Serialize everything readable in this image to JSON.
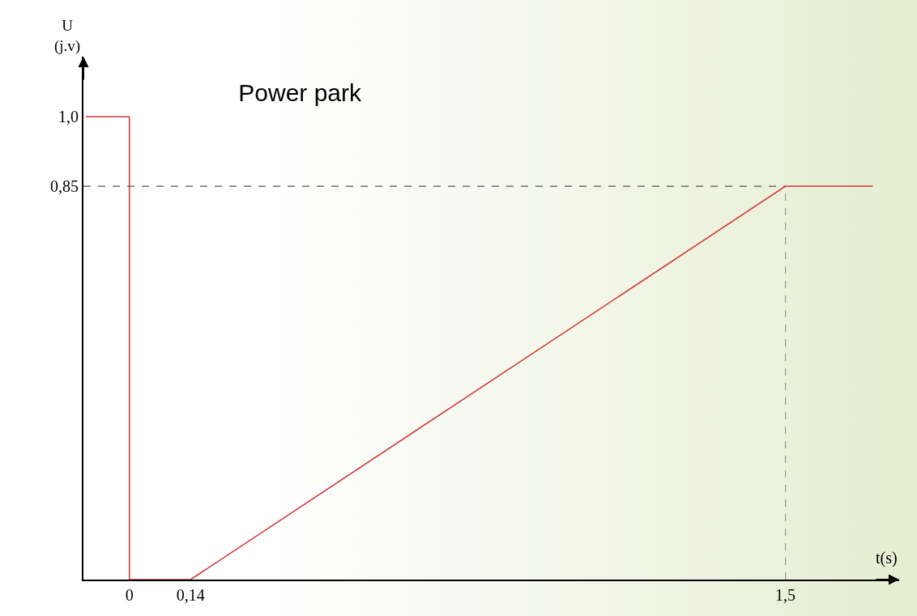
{
  "chart_data": {
    "type": "line",
    "title": "Power park",
    "xlabel": "t(s)",
    "ylabel": "U\n(j.v)",
    "x": [
      -0.1,
      0,
      0,
      0.14,
      1.5,
      1.7
    ],
    "series": [
      {
        "color": "#d03a3a",
        "values": [
          1.0,
          1.0,
          0,
          0,
          0.85,
          0.85
        ]
      }
    ],
    "xlim": [
      -0.105,
      1.76
    ],
    "ylim": [
      0,
      1.13
    ],
    "xticks": [
      0,
      {
        "value": 0.14,
        "label": "0,14"
      },
      {
        "value": 1.5,
        "label": "1,5"
      }
    ],
    "yticks": [
      {
        "value": 0.85,
        "label": "0,85"
      },
      {
        "value": 1.0,
        "label": "1,0"
      }
    ],
    "ref_lines": [
      {
        "axis": "y",
        "value": 0.85,
        "color": "#555555",
        "line_style": "dashed"
      },
      {
        "axis": "x",
        "value": 1.5,
        "color": "#999999",
        "line_style": "dashed"
      }
    ],
    "grid": false,
    "marker": "none",
    "line_style": "solid"
  }
}
